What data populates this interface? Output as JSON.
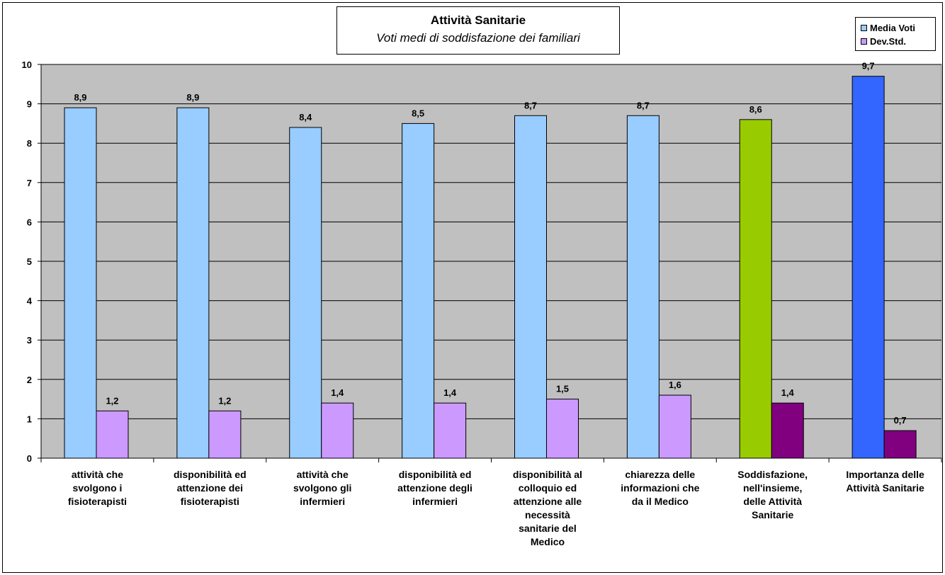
{
  "chart_data": {
    "type": "bar",
    "title": "Attività Sanitarie",
    "subtitle": "Voti medi di soddisfazione dei familiari",
    "ylim": [
      0,
      10
    ],
    "yticks": [
      0,
      1,
      2,
      3,
      4,
      5,
      6,
      7,
      8,
      9,
      10
    ],
    "grid": true,
    "legend_position": "top-right",
    "categories": [
      "attività che svolgono i fisioterapisti",
      "disponibilità ed attenzione dei fisioterapisti",
      "attività che svolgono gli infermieri",
      "disponibilità ed attenzione degli infermieri",
      "disponibilità al colloquio ed attenzione alle necessità sanitarie del Medico",
      "chiarezza delle informazioni che da il Medico",
      "Soddisfazione, nell'insieme, delle Attività Sanitarie",
      "Importanza delle Attività Sanitarie"
    ],
    "category_lines": [
      [
        "attività che",
        "svolgono i",
        "fisioterapisti"
      ],
      [
        "disponibilità ed",
        "attenzione dei",
        "fisioterapisti"
      ],
      [
        "attività che",
        "svolgono gli",
        "infermieri"
      ],
      [
        "disponibilità ed",
        "attenzione degli",
        "infermieri"
      ],
      [
        "disponibilità al",
        "colloquio ed",
        "attenzione alle",
        "necessità",
        "sanitarie del",
        "Medico"
      ],
      [
        "chiarezza delle",
        "informazioni che",
        "da il Medico"
      ],
      [
        "Soddisfazione,",
        "nell'insieme,",
        "delle Attività",
        "Sanitarie"
      ],
      [
        "Importanza delle",
        "Attività Sanitarie"
      ]
    ],
    "series": [
      {
        "name": "Media Voti",
        "values": [
          8.9,
          8.9,
          8.4,
          8.5,
          8.7,
          8.7,
          8.6,
          9.7
        ],
        "labels": [
          "8,9",
          "8,9",
          "8,4",
          "8,5",
          "8,7",
          "8,7",
          "8,6",
          "9,7"
        ],
        "colors": [
          "#99ccff",
          "#99ccff",
          "#99ccff",
          "#99ccff",
          "#99ccff",
          "#99ccff",
          "#99cc00",
          "#3366ff"
        ]
      },
      {
        "name": "Dev.Std.",
        "values": [
          1.2,
          1.2,
          1.4,
          1.4,
          1.5,
          1.6,
          1.4,
          0.7
        ],
        "labels": [
          "1,2",
          "1,2",
          "1,4",
          "1,4",
          "1,5",
          "1,6",
          "1,4",
          "0,7"
        ],
        "colors": [
          "#cc99ff",
          "#cc99ff",
          "#cc99ff",
          "#cc99ff",
          "#cc99ff",
          "#cc99ff",
          "#800080",
          "#800080"
        ]
      }
    ],
    "legend_colors": [
      "#99ccff",
      "#cc99ff"
    ],
    "plot_background": "#c0c0c0"
  }
}
